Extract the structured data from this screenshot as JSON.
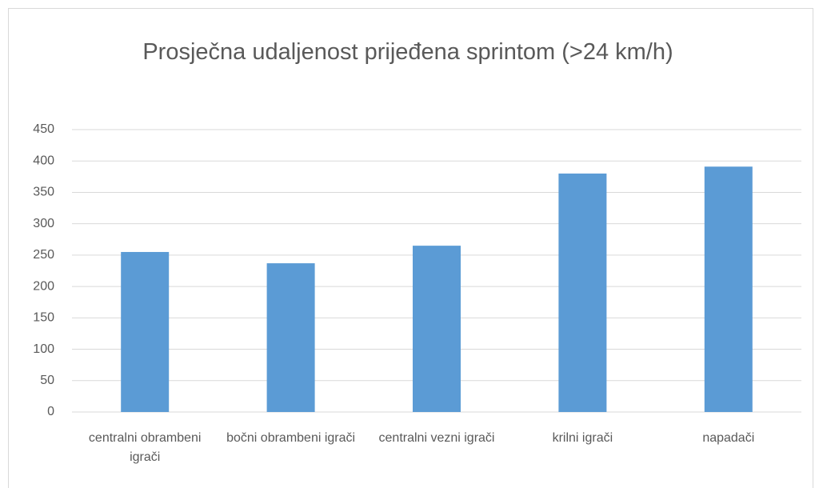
{
  "chart_data": {
    "type": "bar",
    "title": "Prosječna udaljenost prijeđena sprintom (>24 km/h)",
    "categories": [
      "centralni obrambeni igrači",
      "bočni obrambeni igrači",
      "centralni vezni igrači",
      "krilni igrači",
      "napadači"
    ],
    "values": [
      255,
      237,
      265,
      380,
      391
    ],
    "color": "#5b9bd5",
    "ylim": [
      0,
      450
    ],
    "yticks": [
      0,
      50,
      100,
      150,
      200,
      250,
      300,
      350,
      400,
      450
    ],
    "grid": true
  }
}
